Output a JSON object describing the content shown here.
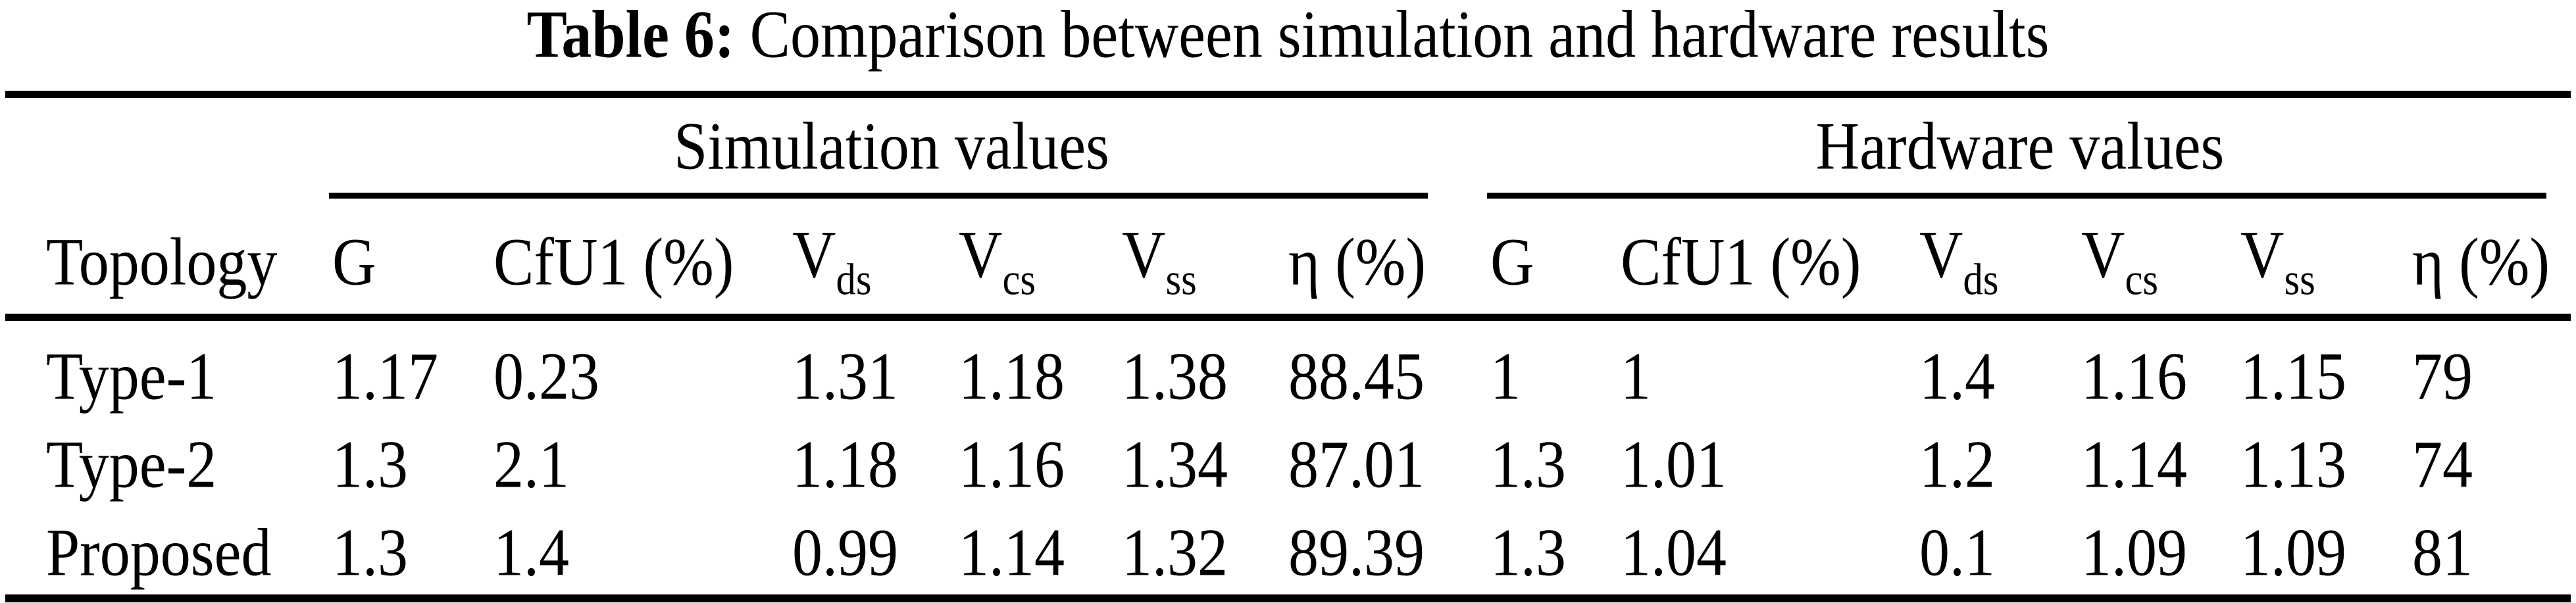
{
  "title": {
    "label": "Table 6:",
    "text": "Comparison between simulation and hardware results"
  },
  "table": {
    "row_header": "Topology",
    "groups": [
      {
        "label": "Simulation values"
      },
      {
        "label": "Hardware values"
      }
    ],
    "columns": [
      "G",
      "CfU1 (%)",
      "V_ds",
      "V_cs",
      "V_ss",
      "η (%)",
      "G",
      "CfU1 (%)",
      "V_ds",
      "V_cs",
      "V_ss",
      "η (%)"
    ],
    "rows": [
      {
        "topology": "Type-1",
        "values": [
          "1.17",
          "0.23",
          "1.31",
          "1.18",
          "1.38",
          "88.45",
          "1",
          "1",
          "1.4",
          "1.16",
          "1.15",
          "79"
        ]
      },
      {
        "topology": "Type-2",
        "values": [
          "1.3",
          "2.1",
          "1.18",
          "1.16",
          "1.34",
          "87.01",
          "1.3",
          "1.01",
          "1.2",
          "1.14",
          "1.13",
          "74"
        ]
      },
      {
        "topology": "Proposed",
        "values": [
          "1.3",
          "1.4",
          "0.99",
          "1.14",
          "1.32",
          "89.39",
          "1.3",
          "1.04",
          "0.1",
          "1.09",
          "1.09",
          "81"
        ]
      }
    ]
  }
}
